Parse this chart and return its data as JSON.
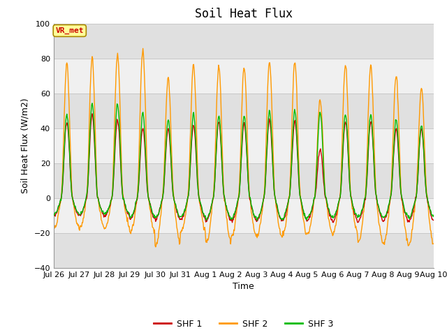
{
  "title": "Soil Heat Flux",
  "xlabel": "Time",
  "ylabel": "Soil Heat Flux (W/m2)",
  "ylim": [
    -40,
    100
  ],
  "yticks": [
    -40,
    -20,
    0,
    20,
    40,
    60,
    80,
    100
  ],
  "date_labels": [
    "Jul 26",
    "Jul 27",
    "Jul 28",
    "Jul 29",
    "Jul 30",
    "Jul 31",
    "Aug 1",
    "Aug 2",
    "Aug 3",
    "Aug 4",
    "Aug 5",
    "Aug 6",
    "Aug 7",
    "Aug 8",
    "Aug 9",
    "Aug 10"
  ],
  "shf1_color": "#cc0000",
  "shf2_color": "#ff9900",
  "shf3_color": "#00bb00",
  "legend_labels": [
    "SHF 1",
    "SHF 2",
    "SHF 3"
  ],
  "vr_met_label": "VR_met",
  "vr_met_color": "#cc0000",
  "vr_met_bg": "#ffff99",
  "fig_bg_color": "#ffffff",
  "band_light": "#f0f0f0",
  "band_dark": "#e0e0e0",
  "grid_color": "#c8c8c8",
  "linewidth": 1.0,
  "title_fontsize": 12,
  "label_fontsize": 9,
  "tick_fontsize": 8,
  "shf2_day_peaks": [
    77,
    80,
    82,
    84,
    69,
    76,
    75,
    75,
    78,
    78,
    56,
    76,
    76,
    70,
    63
  ],
  "shf2_night": [
    -17,
    -17,
    -17,
    -20,
    -27,
    -19,
    -25,
    -22,
    -22,
    -21,
    -20,
    -20,
    -26,
    -26,
    -26
  ],
  "shf1_day_peaks": [
    44,
    48,
    45,
    40,
    40,
    42,
    44,
    43,
    45,
    44,
    28,
    44,
    44,
    40,
    40
  ],
  "shf1_night": [
    -10,
    -10,
    -10,
    -12,
    -12,
    -12,
    -13,
    -13,
    -13,
    -13,
    -13,
    -13,
    -13,
    -13,
    -13
  ],
  "shf3_day_peaks": [
    48,
    54,
    54,
    49,
    45,
    48,
    47,
    47,
    50,
    50,
    49,
    48,
    48,
    45,
    42
  ],
  "shf3_night": [
    -9,
    -9,
    -9,
    -11,
    -11,
    -11,
    -12,
    -12,
    -12,
    -12,
    -11,
    -11,
    -11,
    -11,
    -11
  ]
}
